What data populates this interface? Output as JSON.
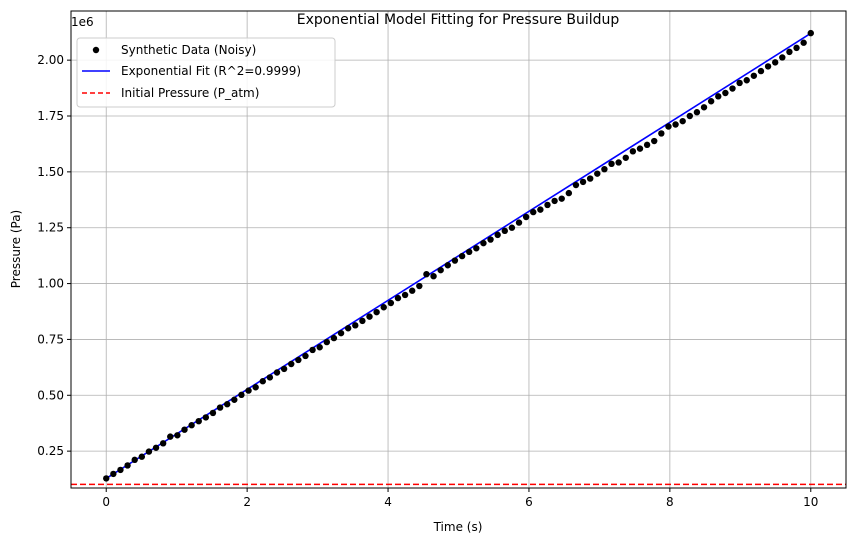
{
  "chart_data": {
    "type": "scatter",
    "title": "Exponential Model Fitting for Pressure Buildup",
    "xlabel": "Time (s)",
    "ylabel": "Pressure (Pa)",
    "y_scale_label": "1e6",
    "xlim": [
      -0.5,
      10.5
    ],
    "ylim": [
      0.085,
      2.22
    ],
    "x_ticks": [
      0,
      2,
      4,
      6,
      8,
      10
    ],
    "x_tick_labels": [
      "0",
      "2",
      "4",
      "6",
      "8",
      "10"
    ],
    "y_ticks": [
      0.25,
      0.5,
      0.75,
      1.0,
      1.25,
      1.5,
      1.75,
      2.0
    ],
    "y_tick_labels": [
      "0.25",
      "0.50",
      "0.75",
      "1.00",
      "1.25",
      "1.50",
      "1.75",
      "2.00"
    ],
    "grid": true,
    "legend_position": "top-left",
    "series": [
      {
        "name": "Synthetic Data (Noisy)",
        "kind": "scatter",
        "color": "#000000",
        "x": [
          0.0,
          0.101,
          0.202,
          0.303,
          0.404,
          0.505,
          0.606,
          0.707,
          0.808,
          0.909,
          1.01,
          1.111,
          1.212,
          1.313,
          1.414,
          1.515,
          1.616,
          1.717,
          1.818,
          1.919,
          2.02,
          2.121,
          2.222,
          2.323,
          2.424,
          2.525,
          2.626,
          2.727,
          2.828,
          2.929,
          3.03,
          3.131,
          3.232,
          3.333,
          3.434,
          3.535,
          3.636,
          3.737,
          3.838,
          3.939,
          4.04,
          4.141,
          4.242,
          4.343,
          4.444,
          4.545,
          4.646,
          4.747,
          4.848,
          4.949,
          5.051,
          5.152,
          5.253,
          5.354,
          5.455,
          5.556,
          5.657,
          5.758,
          5.859,
          5.96,
          6.061,
          6.162,
          6.263,
          6.364,
          6.465,
          6.566,
          6.667,
          6.768,
          6.869,
          6.97,
          7.071,
          7.172,
          7.273,
          7.374,
          7.475,
          7.576,
          7.677,
          7.778,
          7.879,
          7.98,
          8.081,
          8.182,
          8.283,
          8.384,
          8.485,
          8.586,
          8.687,
          8.788,
          8.889,
          8.99,
          9.091,
          9.192,
          9.293,
          9.394,
          9.495,
          9.596,
          9.697,
          9.798,
          9.899,
          10.0
        ],
        "y": [
          0.128,
          0.148,
          0.166,
          0.186,
          0.211,
          0.225,
          0.248,
          0.265,
          0.285,
          0.315,
          0.321,
          0.346,
          0.366,
          0.384,
          0.401,
          0.421,
          0.445,
          0.46,
          0.48,
          0.502,
          0.521,
          0.536,
          0.563,
          0.58,
          0.602,
          0.618,
          0.64,
          0.658,
          0.676,
          0.703,
          0.715,
          0.738,
          0.756,
          0.778,
          0.8,
          0.813,
          0.833,
          0.852,
          0.872,
          0.894,
          0.913,
          0.935,
          0.949,
          0.968,
          0.989,
          1.042,
          1.033,
          1.06,
          1.082,
          1.103,
          1.123,
          1.142,
          1.158,
          1.181,
          1.197,
          1.218,
          1.236,
          1.25,
          1.273,
          1.298,
          1.32,
          1.331,
          1.352,
          1.37,
          1.38,
          1.405,
          1.441,
          1.455,
          1.47,
          1.492,
          1.512,
          1.536,
          1.542,
          1.563,
          1.592,
          1.604,
          1.621,
          1.638,
          1.672,
          1.703,
          1.712,
          1.727,
          1.75,
          1.767,
          1.789,
          1.816,
          1.838,
          1.853,
          1.873,
          1.898,
          1.91,
          1.93,
          1.951,
          1.972,
          1.99,
          2.012,
          2.037,
          2.055,
          2.078,
          2.121
        ]
      },
      {
        "name": "Exponential Fit (R^2=0.9999)",
        "kind": "line",
        "color": "#0000ff",
        "x_start": 0,
        "x_end": 10,
        "y_start": 0.128,
        "y_end": 2.12
      },
      {
        "name": "Initial Pressure (P_atm)",
        "kind": "hline",
        "color": "#ff0000",
        "y": 0.101325
      }
    ]
  }
}
